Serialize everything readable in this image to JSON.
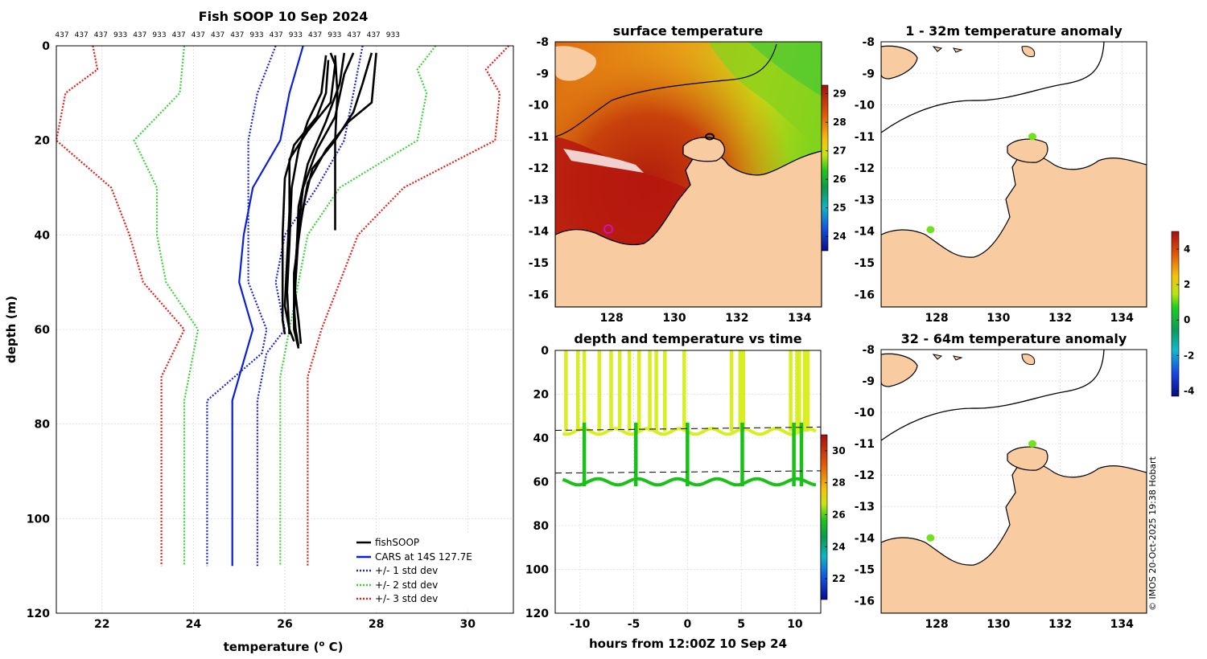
{
  "copyright": "© IMOS 20-Oct-2025 19:38 Hobart",
  "colors": {
    "land": "#f8cba0",
    "fish": "#000000",
    "cars": "#0a1ed8",
    "std1": "#1a22d8",
    "std2": "#3cd23c",
    "std3": "#e81e14"
  },
  "chart_data": [
    {
      "id": "profile",
      "type": "line",
      "title": "Fish SOOP 10 Sep 2024",
      "subtitle_ids": [
        "437",
        "437",
        "437",
        "933",
        "437",
        "933",
        "437",
        "437",
        "437",
        "437",
        "933",
        "437",
        "933",
        "437",
        "933",
        "437",
        "437",
        "933"
      ],
      "xlabel": "temperature (",
      "xlabel_sup": "o",
      "xlabel_end": " C)",
      "ylabel": "depth (m)",
      "xlim": [
        21,
        31
      ],
      "ylim": [
        0,
        120
      ],
      "xticks": [
        "22",
        "24",
        "26",
        "28",
        "30"
      ],
      "yticks": [
        "0",
        "20",
        "40",
        "60",
        "80",
        "100",
        "120"
      ],
      "legend": [
        "fishSOOP",
        "CARS at 14S 127.7E",
        "+/- 1 std dev",
        "+/- 2 std dev",
        "+/- 3 std dev"
      ],
      "series": [
        {
          "name": "CARS",
          "style": "solid",
          "color": "#0a1ed8",
          "points": [
            [
              26.4,
              0
            ],
            [
              26.1,
              10
            ],
            [
              25.9,
              20
            ],
            [
              25.3,
              30
            ],
            [
              25.1,
              40
            ],
            [
              25.0,
              50
            ],
            [
              25.3,
              60
            ],
            [
              25.0,
              70
            ],
            [
              24.85,
              75
            ],
            [
              24.85,
              110
            ]
          ]
        },
        {
          "name": "-1sd",
          "style": "dot",
          "color": "#1a22d8",
          "points": [
            [
              25.8,
              0
            ],
            [
              25.4,
              10
            ],
            [
              25.2,
              20
            ],
            [
              25.2,
              30
            ],
            [
              25.2,
              40
            ],
            [
              25.2,
              50
            ],
            [
              25.6,
              60
            ],
            [
              25.5,
              65
            ],
            [
              24.3,
              75
            ],
            [
              24.3,
              110
            ]
          ]
        },
        {
          "name": "+1sd",
          "style": "dot",
          "color": "#1a22d8",
          "points": [
            [
              27.7,
              0
            ],
            [
              27.5,
              10
            ],
            [
              27.3,
              20
            ],
            [
              26.7,
              30
            ],
            [
              26.0,
              40
            ],
            [
              25.8,
              50
            ],
            [
              26.0,
              60
            ],
            [
              25.6,
              65
            ],
            [
              25.4,
              75
            ],
            [
              25.4,
              110
            ]
          ]
        },
        {
          "name": "-2sd",
          "style": "dot",
          "color": "#3cd23c",
          "points": [
            [
              23.8,
              0
            ],
            [
              23.7,
              10
            ],
            [
              22.7,
              20
            ],
            [
              23.2,
              30
            ],
            [
              23.2,
              40
            ],
            [
              23.4,
              50
            ],
            [
              24.1,
              60
            ],
            [
              23.9,
              70
            ],
            [
              23.8,
              75
            ],
            [
              23.8,
              110
            ]
          ]
        },
        {
          "name": "+2sd",
          "style": "dot",
          "color": "#3cd23c",
          "points": [
            [
              29.3,
              0
            ],
            [
              28.9,
              5
            ],
            [
              29.1,
              10
            ],
            [
              28.9,
              20
            ],
            [
              27.2,
              30
            ],
            [
              26.5,
              40
            ],
            [
              26.3,
              50
            ],
            [
              26.1,
              60
            ],
            [
              25.9,
              70
            ],
            [
              25.9,
              110
            ]
          ]
        },
        {
          "name": "-3sd",
          "style": "dot",
          "color": "#e81e14",
          "points": [
            [
              21.8,
              0
            ],
            [
              21.9,
              5
            ],
            [
              21.2,
              10
            ],
            [
              21.0,
              20
            ],
            [
              22.2,
              30
            ],
            [
              22.6,
              40
            ],
            [
              22.9,
              50
            ],
            [
              23.8,
              60
            ],
            [
              23.3,
              70
            ],
            [
              23.3,
              110
            ]
          ]
        },
        {
          "name": "+3sd",
          "style": "dot",
          "color": "#e81e14",
          "points": [
            [
              30.9,
              0
            ],
            [
              30.4,
              5
            ],
            [
              30.7,
              10
            ],
            [
              30.6,
              20
            ],
            [
              28.6,
              30
            ],
            [
              27.6,
              40
            ],
            [
              27.2,
              50
            ],
            [
              26.8,
              60
            ],
            [
              26.5,
              70
            ],
            [
              26.5,
              110
            ]
          ]
        },
        {
          "name": "fish1",
          "style": "solid",
          "color": "#000",
          "points": [
            [
              27.0,
              1.5
            ],
            [
              27.1,
              4
            ],
            [
              27.0,
              12
            ],
            [
              26.5,
              18
            ],
            [
              26.1,
              24
            ],
            [
              26.1,
              35
            ],
            [
              26.05,
              45
            ],
            [
              26.0,
              55
            ],
            [
              26.1,
              60
            ],
            [
              26.2,
              62.5
            ]
          ]
        },
        {
          "name": "fish2",
          "style": "solid",
          "color": "#000",
          "points": [
            [
              27.5,
              1.5
            ],
            [
              27.3,
              6
            ],
            [
              27.1,
              15
            ],
            [
              26.7,
              22
            ],
            [
              26.4,
              30
            ],
            [
              26.3,
              38
            ],
            [
              26.2,
              50
            ],
            [
              26.3,
              58
            ],
            [
              26.35,
              63
            ]
          ]
        },
        {
          "name": "fish3",
          "style": "solid",
          "color": "#000",
          "points": [
            [
              27.9,
              1.5
            ],
            [
              27.7,
              8
            ],
            [
              27.5,
              14
            ],
            [
              27.1,
              20
            ],
            [
              26.6,
              26
            ],
            [
              26.4,
              34
            ],
            [
              26.2,
              48
            ],
            [
              26.2,
              60
            ],
            [
              26.3,
              64
            ]
          ]
        },
        {
          "name": "fish4",
          "style": "solid",
          "color": "#000",
          "points": [
            [
              27.1,
              2
            ],
            [
              27.15,
              10
            ],
            [
              27.1,
              20
            ],
            [
              27.1,
              30
            ],
            [
              27.1,
              39
            ]
          ]
        },
        {
          "name": "fish5",
          "style": "solid",
          "color": "#000",
          "points": [
            [
              26.9,
              2
            ],
            [
              26.8,
              10
            ],
            [
              26.5,
              16
            ],
            [
              26.3,
              22
            ],
            [
              26.15,
              30
            ],
            [
              26.1,
              42
            ],
            [
              26.05,
              52
            ],
            [
              26.1,
              61
            ]
          ]
        },
        {
          "name": "fish6",
          "style": "solid",
          "color": "#000",
          "points": [
            [
              27.3,
              1.5
            ],
            [
              27.2,
              8
            ],
            [
              26.9,
              16
            ],
            [
              26.5,
              25
            ],
            [
              26.3,
              34
            ],
            [
              26.25,
              45
            ],
            [
              26.2,
              58
            ],
            [
              26.3,
              63.5
            ]
          ]
        },
        {
          "name": "fish7",
          "style": "solid",
          "color": "#000",
          "points": [
            [
              28.0,
              1.5
            ],
            [
              27.9,
              12
            ],
            [
              27.4,
              16
            ],
            [
              26.9,
              22
            ],
            [
              26.5,
              29
            ],
            [
              26.3,
              40
            ],
            [
              26.2,
              55
            ],
            [
              26.25,
              62
            ]
          ]
        },
        {
          "name": "fish8",
          "style": "solid",
          "color": "#000",
          "points": [
            [
              26.95,
              3
            ],
            [
              26.9,
              10
            ],
            [
              26.7,
              15
            ],
            [
              26.2,
              21
            ],
            [
              26.0,
              28
            ],
            [
              25.95,
              40
            ],
            [
              25.95,
              58
            ],
            [
              26.0,
              61
            ]
          ]
        }
      ]
    },
    {
      "id": "sst",
      "type": "heatmap",
      "title": "surface temperature",
      "xlim": [
        126.2,
        134.7
      ],
      "ylim": [
        -16.4,
        -8
      ],
      "xticks": [
        "128",
        "130",
        "132",
        "134"
      ],
      "yticks": [
        "-8",
        "-9",
        "-10",
        "-11",
        "-12",
        "-13",
        "-14",
        "-15",
        "-16"
      ],
      "colorbar": {
        "range": [
          23.5,
          29.3
        ],
        "ticks": [
          "29",
          "28",
          "27",
          "26",
          "25",
          "24"
        ]
      }
    },
    {
      "id": "anom1",
      "type": "scatter",
      "title": "1 - 32m temperature anomaly",
      "xlim": [
        126.2,
        134.8
      ],
      "ylim": [
        -16.4,
        -8
      ],
      "xticks": [
        "128",
        "130",
        "132",
        "134"
      ],
      "yticks": [
        "-8",
        "-9",
        "-10",
        "-11",
        "-12",
        "-13",
        "-14",
        "-15",
        "-16"
      ],
      "points": [
        {
          "lon": 131.1,
          "lat": -11.0,
          "anomaly": 0.3
        },
        {
          "lon": 127.8,
          "lat": -13.95,
          "anomaly": 0.5
        }
      ],
      "colorbar": {
        "range": [
          -4.3,
          5.0
        ],
        "ticks": [
          "4",
          "2",
          "0",
          "-2",
          "-4"
        ]
      }
    },
    {
      "id": "anom2",
      "type": "scatter",
      "title": "32 - 64m temperature anomaly",
      "xlim": [
        126.2,
        134.8
      ],
      "ylim": [
        -16.4,
        -8
      ],
      "xticks": [
        "128",
        "130",
        "132",
        "134"
      ],
      "yticks": [
        "-8",
        "-9",
        "-10",
        "-11",
        "-12",
        "-13",
        "-14",
        "-15",
        "-16"
      ],
      "points": [
        {
          "lon": 131.1,
          "lat": -11.0,
          "anomaly": 0.3
        },
        {
          "lon": 127.8,
          "lat": -14.0,
          "anomaly": 0.5
        }
      ]
    },
    {
      "id": "depthtime",
      "type": "scatter",
      "title": "depth and temperature vs time",
      "xlabel": "hours from 12:00Z 10 Sep 24",
      "xlim": [
        -12.3,
        12.4
      ],
      "ylim": [
        0,
        120
      ],
      "xticks": [
        "-10",
        "-5",
        "0",
        "5",
        "10"
      ],
      "yticks": [
        "0",
        "20",
        "40",
        "60",
        "80",
        "100",
        "120"
      ],
      "dashed_lines": [
        {
          "x0": -12.3,
          "x1": 12.4,
          "y0": 36.5,
          "y1": 35
        },
        {
          "x0": -12.3,
          "x1": 12.4,
          "y0": 56,
          "y1": 55
        }
      ],
      "shallow_trace_depth": 37,
      "deep_trace_depth": 60,
      "profile_times": [
        -11.3,
        -10.2,
        -9.6,
        -8.2,
        -7.1,
        -6.3,
        -5.4,
        -4.5,
        -3.5,
        -2.9,
        -2.1,
        -0.3,
        4.1,
        4.9,
        5.2,
        9.6,
        10.2,
        10.4,
        10.9,
        11.2
      ],
      "deep_profile_times": [
        -9.6,
        -4.8,
        0,
        5.1,
        9.9,
        10.6
      ],
      "colorbar": {
        "range": [
          20.7,
          31
        ],
        "ticks": [
          "30",
          "28",
          "26",
          "24",
          "22"
        ]
      }
    }
  ]
}
